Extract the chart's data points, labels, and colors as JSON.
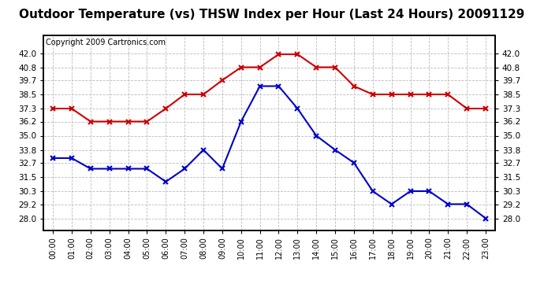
{
  "title": "Outdoor Temperature (vs) THSW Index per Hour (Last 24 Hours) 20091129",
  "copyright": "Copyright 2009 Cartronics.com",
  "hours": [
    "00:00",
    "01:00",
    "02:00",
    "03:00",
    "04:00",
    "05:00",
    "06:00",
    "07:00",
    "08:00",
    "09:00",
    "10:00",
    "11:00",
    "12:00",
    "13:00",
    "14:00",
    "15:00",
    "16:00",
    "17:00",
    "18:00",
    "19:00",
    "20:00",
    "21:00",
    "22:00",
    "23:00"
  ],
  "thsw": [
    37.3,
    37.3,
    36.2,
    36.2,
    36.2,
    36.2,
    37.3,
    38.5,
    38.5,
    39.7,
    40.8,
    40.8,
    41.9,
    41.9,
    40.8,
    40.8,
    39.2,
    38.5,
    38.5,
    38.5,
    38.5,
    38.5,
    37.3,
    37.3
  ],
  "temp": [
    33.1,
    33.1,
    32.2,
    32.2,
    32.2,
    32.2,
    31.1,
    32.2,
    33.8,
    32.2,
    36.2,
    39.2,
    39.2,
    37.3,
    35.0,
    33.8,
    32.7,
    30.3,
    29.2,
    30.3,
    30.3,
    29.2,
    29.2,
    28.0
  ],
  "thsw_color": "#cc0000",
  "temp_color": "#0000cc",
  "bg_color": "#ffffff",
  "plot_bg_color": "#ffffff",
  "grid_color": "#bbbbbb",
  "ylim_min": 27.0,
  "ylim_max": 43.5,
  "yticks": [
    28.0,
    29.2,
    30.3,
    31.5,
    32.7,
    33.8,
    35.0,
    36.2,
    37.3,
    38.5,
    39.7,
    40.8,
    42.0
  ],
  "title_fontsize": 11,
  "copyright_fontsize": 7,
  "tick_fontsize": 7.5,
  "xtick_fontsize": 7.0
}
